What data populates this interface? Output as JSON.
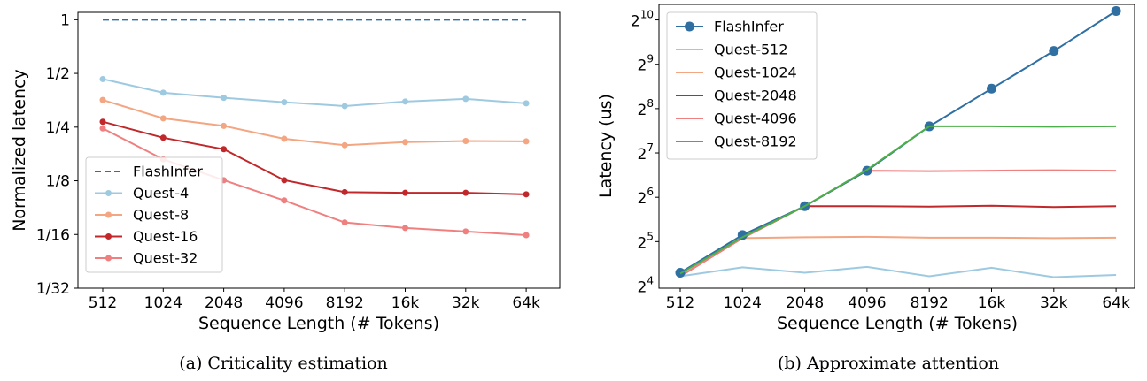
{
  "figure": {
    "captions": [
      "(a) Criticality estimation",
      "(b) Approximate attention"
    ]
  },
  "chart_data": [
    {
      "type": "line",
      "title": "",
      "xlabel": "Sequence Length (# Tokens)",
      "ylabel": "Normalized latency",
      "categories": [
        "512",
        "1024",
        "2048",
        "4096",
        "8192",
        "16k",
        "32k",
        "64k"
      ],
      "y_scale": "log2",
      "ylim": [
        0.03125,
        1.1
      ],
      "y_ticks": [
        {
          "value": 1,
          "label": "1"
        },
        {
          "value": 0.5,
          "label": "1/2"
        },
        {
          "value": 0.25,
          "label": "1/4"
        },
        {
          "value": 0.125,
          "label": "1/8"
        },
        {
          "value": 0.0625,
          "label": "1/16"
        },
        {
          "value": 0.03125,
          "label": "1/32"
        }
      ],
      "legend_position": "lower-left",
      "series": [
        {
          "name": "FlashInfer",
          "color": "#2f6fa2",
          "style": "dashed",
          "marker": "none",
          "values": [
            1,
            1,
            1,
            1,
            1,
            1,
            1,
            1
          ]
        },
        {
          "name": "Quest-4",
          "color": "#9ecae1",
          "style": "solid",
          "marker": "circle",
          "values": [
            0.465,
            0.39,
            0.365,
            0.345,
            0.328,
            0.348,
            0.36,
            0.34
          ]
        },
        {
          "name": "Quest-8",
          "color": "#f4a582",
          "style": "solid",
          "marker": "circle",
          "values": [
            0.355,
            0.28,
            0.254,
            0.215,
            0.198,
            0.206,
            0.209,
            0.208
          ]
        },
        {
          "name": "Quest-16",
          "color": "#c0282b",
          "style": "solid",
          "marker": "circle",
          "values": [
            0.268,
            0.218,
            0.188,
            0.126,
            0.108,
            0.107,
            0.107,
            0.105
          ]
        },
        {
          "name": "Quest-32",
          "color": "#f08080",
          "style": "solid",
          "marker": "circle",
          "values": [
            0.246,
            0.165,
            0.126,
            0.097,
            0.073,
            0.068,
            0.065,
            0.062
          ]
        }
      ]
    },
    {
      "type": "line",
      "title": "",
      "xlabel": "Sequence Length (# Tokens)",
      "ylabel": "Latency (us)",
      "categories": [
        "512",
        "1024",
        "2048",
        "4096",
        "8192",
        "16k",
        "32k",
        "64k"
      ],
      "y_scale": "log2",
      "ylim_exponent": [
        3.95,
        10.35
      ],
      "y_ticks": [
        {
          "base": "2",
          "exp": "10",
          "value": 10
        },
        {
          "base": "2",
          "exp": "9",
          "value": 9
        },
        {
          "base": "2",
          "exp": "8",
          "value": 8
        },
        {
          "base": "2",
          "exp": "7",
          "value": 7
        },
        {
          "base": "2",
          "exp": "6",
          "value": 6
        },
        {
          "base": "2",
          "exp": "5",
          "value": 5
        },
        {
          "base": "2",
          "exp": "4",
          "value": 4
        }
      ],
      "legend_position": "upper-left",
      "series": [
        {
          "name": "FlashInfer",
          "color": "#2f6fa2",
          "style": "solid",
          "marker": "circle-large",
          "log2_values": [
            4.3,
            5.15,
            5.8,
            6.6,
            7.6,
            8.45,
            9.3,
            10.2
          ]
        },
        {
          "name": "Quest-512",
          "color": "#9ecae1",
          "style": "solid",
          "marker": "none",
          "log2_values": [
            4.22,
            4.42,
            4.3,
            4.43,
            4.22,
            4.41,
            4.2,
            4.25
          ]
        },
        {
          "name": "Quest-1024",
          "color": "#f4a582",
          "style": "solid",
          "marker": "none",
          "log2_values": [
            4.22,
            5.08,
            5.1,
            5.11,
            5.09,
            5.09,
            5.08,
            5.09
          ]
        },
        {
          "name": "Quest-2048",
          "color": "#c0282b",
          "style": "solid",
          "marker": "none",
          "log2_values": [
            4.22,
            5.08,
            5.8,
            5.8,
            5.79,
            5.81,
            5.78,
            5.8
          ]
        },
        {
          "name": "Quest-4096",
          "color": "#f08080",
          "style": "solid",
          "marker": "none",
          "log2_values": [
            4.22,
            5.08,
            5.8,
            6.6,
            6.59,
            6.6,
            6.61,
            6.6
          ]
        },
        {
          "name": "Quest-8192",
          "color": "#4daf4a",
          "style": "solid",
          "marker": "none",
          "log2_values": [
            4.28,
            5.1,
            5.8,
            6.62,
            7.6,
            7.6,
            7.59,
            7.6
          ]
        }
      ]
    }
  ]
}
